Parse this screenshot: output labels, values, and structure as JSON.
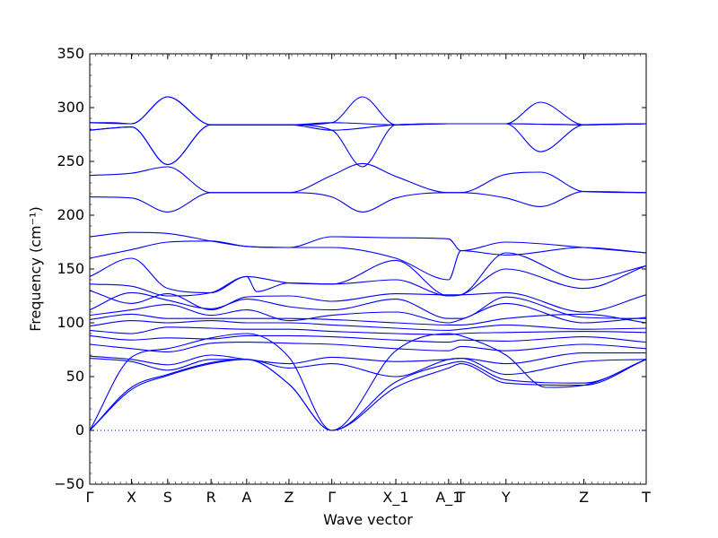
{
  "chart_data": {
    "type": "line",
    "xlabel": "Wave vector",
    "ylabel": "Frequency (cm⁻¹)",
    "ylim": [
      -50,
      350
    ],
    "yticks": [
      -50,
      0,
      50,
      100,
      150,
      200,
      250,
      300,
      350
    ],
    "xlim": [
      0,
      100
    ],
    "high_symmetry_points": [
      {
        "label": "Γ",
        "x": 0
      },
      {
        "label": "X",
        "x": 7.5
      },
      {
        "label": "S",
        "x": 14
      },
      {
        "label": "R",
        "x": 21.8
      },
      {
        "label": "A",
        "x": 28.2
      },
      {
        "label": "Z",
        "x": 35.8
      },
      {
        "label": "Γ",
        "x": 43.5
      },
      {
        "label": "X_1",
        "x": 55
      },
      {
        "label": "A_1",
        "x": 64.5
      },
      {
        "label": "T",
        "x": 66.7
      },
      {
        "label": "Y",
        "x": 74.8
      },
      {
        "label": "Z",
        "x": 88.8
      },
      {
        "label": "T",
        "x": 100
      }
    ],
    "zero_line": true,
    "series": [
      {
        "x": [
          0,
          7.5,
          14,
          21.8,
          28.2,
          35.8,
          43.5,
          55,
          64.5,
          66.7,
          74.8,
          88.8,
          100
        ],
        "y": [
          286,
          285,
          310,
          284,
          284,
          284,
          286,
          284,
          285,
          285,
          285,
          284,
          285
        ]
      },
      {
        "x": [
          0,
          7.5,
          14,
          21.8,
          28.2,
          35.8,
          43.5,
          55,
          64.5,
          66.7,
          74.8,
          88.8,
          100
        ],
        "y": [
          279,
          282,
          247,
          284,
          284,
          284,
          279,
          284,
          285,
          285,
          285,
          284,
          285
        ]
      },
      {
        "x": [
          0,
          4,
          7.5,
          14,
          21.8,
          28.2,
          35.8,
          43.5,
          49,
          55,
          64.5,
          66.7,
          74.8,
          81,
          88.8,
          100
        ],
        "y": [
          286,
          286,
          285,
          310,
          284,
          284,
          284,
          286,
          310,
          284,
          285,
          285,
          285,
          305,
          284,
          285
        ]
      },
      {
        "x": [
          0,
          7.5,
          14,
          21.8,
          28.2,
          35.8,
          43.5,
          49,
          55,
          64.5,
          66.7,
          74.8,
          81,
          88.8,
          100
        ],
        "y": [
          279,
          282,
          247,
          284,
          284,
          284,
          279,
          245,
          284,
          285,
          285,
          285,
          259,
          284,
          285
        ]
      },
      {
        "x": [
          0,
          7.5,
          14,
          21.8,
          28.2,
          35.8,
          43.5,
          49,
          55,
          64.5,
          66.7,
          74.8,
          81,
          88.8,
          100
        ],
        "y": [
          237,
          239,
          245,
          221,
          221,
          221,
          237,
          248,
          236,
          221,
          221,
          238,
          240,
          222,
          221
        ]
      },
      {
        "x": [
          0,
          7.5,
          14,
          21.8,
          28.2,
          35.8,
          43.5,
          49,
          55,
          64.5,
          66.7,
          74.8,
          81,
          88.8,
          100
        ],
        "y": [
          217,
          216,
          203,
          221,
          221,
          221,
          217,
          203,
          216,
          221,
          221,
          216,
          208,
          222,
          221
        ]
      },
      {
        "x": [
          0,
          7.5,
          14,
          21.8,
          28.2,
          35.8,
          43.5,
          55,
          64.5,
          66.7,
          74.8,
          88.8,
          100
        ],
        "y": [
          180,
          184,
          183,
          176,
          171,
          170,
          180,
          179,
          178,
          167,
          175,
          170,
          165
        ]
      },
      {
        "x": [
          0,
          7.5,
          14,
          21.8,
          28.2,
          35.8,
          43.5,
          55,
          64.5,
          66.7,
          74.8,
          88.8,
          100
        ],
        "y": [
          160,
          168,
          175,
          176,
          171,
          170,
          170,
          160,
          140,
          167,
          163,
          170,
          165
        ]
      },
      {
        "x": [
          0,
          7.5,
          14,
          21.8,
          28.2,
          35.8,
          43.5,
          55,
          64.5,
          66.7,
          74.8,
          88.8,
          100
        ],
        "y": [
          143,
          160,
          132,
          128,
          143,
          137,
          136,
          140,
          125,
          126,
          165,
          140,
          153
        ]
      },
      {
        "x": [
          0,
          7.5,
          14,
          21.8,
          28.2,
          30,
          35.8,
          43.5,
          55,
          64.5,
          66.7,
          74.8,
          88.8,
          100
        ],
        "y": [
          136,
          134,
          125,
          128,
          143,
          129,
          137,
          136,
          158,
          125,
          126,
          150,
          132,
          153
        ]
      },
      {
        "x": [
          0,
          7.5,
          14,
          21.8,
          28.2,
          35.8,
          43.5,
          55,
          64.5,
          66.7,
          74.8,
          88.8,
          100
        ],
        "y": [
          130,
          118,
          127,
          112,
          124,
          125,
          120,
          127,
          126,
          126,
          128,
          110,
          126
        ]
      },
      {
        "x": [
          0,
          7.5,
          14,
          21.8,
          28.2,
          35.8,
          43.5,
          55,
          64.5,
          66.7,
          74.8,
          88.8,
          100
        ],
        "y": [
          112,
          128,
          121,
          113,
          122,
          115,
          112,
          122,
          104,
          104,
          124,
          105,
          104
        ]
      },
      {
        "x": [
          0,
          7.5,
          14,
          21.8,
          28.2,
          35.8,
          43.5,
          55,
          64.5,
          66.7,
          74.8,
          88.8,
          100
        ],
        "y": [
          107,
          112,
          117,
          107,
          112,
          102,
          107,
          110,
          100,
          103,
          118,
          100,
          105
        ]
      },
      {
        "x": [
          0,
          7.5,
          14,
          21.8,
          28.2,
          35.8,
          43.5,
          55,
          64.5,
          66.7,
          74.8,
          88.8,
          100
        ],
        "y": [
          103,
          108,
          104,
          104,
          104,
          104,
          103,
          100,
          98,
          98,
          104,
          108,
          100
        ]
      },
      {
        "x": [
          0,
          7.5,
          14,
          21.8,
          28.2,
          35.8,
          43.5,
          55,
          64.5,
          66.7,
          74.8,
          88.8,
          100
        ],
        "y": [
          97,
          102,
          100,
          102,
          100,
          100,
          98,
          95,
          93,
          94,
          98,
          94,
          95
        ]
      },
      {
        "x": [
          0,
          7.5,
          14,
          21.8,
          28.2,
          35.8,
          43.5,
          55,
          64.5,
          66.7,
          74.8,
          88.8,
          100
        ],
        "y": [
          93,
          90,
          96,
          95,
          94,
          94,
          92,
          90,
          89,
          90,
          91,
          92,
          91
        ]
      },
      {
        "x": [
          0,
          7.5,
          14,
          21.8,
          28.2,
          35.8,
          43.5,
          55,
          64.5,
          66.7,
          74.8,
          88.8,
          100
        ],
        "y": [
          88,
          84,
          86,
          85,
          88,
          88,
          87,
          84,
          82,
          84,
          83,
          87,
          82
        ]
      },
      {
        "x": [
          0,
          7.5,
          14,
          21.8,
          28.2,
          35.8,
          43.5,
          55,
          64.5,
          66.7,
          74.8,
          88.8,
          100
        ],
        "y": [
          80,
          76,
          73,
          81,
          82,
          81,
          80,
          76,
          74,
          78,
          74,
          80,
          76
        ]
      },
      {
        "x": [
          0,
          7.5,
          14,
          21.8,
          28.2,
          35.8,
          43.5,
          55,
          64.5,
          66.7,
          74.8,
          88.8,
          100
        ],
        "y": [
          69,
          66,
          61,
          70,
          66,
          62,
          68,
          64,
          66,
          67,
          62,
          72,
          72
        ]
      },
      {
        "x": [
          0,
          7.5,
          14,
          21.8,
          28.2,
          35.8,
          43.5,
          55,
          64.5,
          66.7,
          74.8,
          88.8,
          100
        ],
        "y": [
          67,
          64,
          56,
          66,
          66,
          58,
          62,
          50,
          66,
          67,
          52,
          64,
          66
        ]
      },
      {
        "x": [
          0,
          7.5,
          14,
          21.8,
          28.2,
          35.8,
          43.5,
          55,
          64.5,
          66.7,
          74.8,
          88.8,
          100
        ],
        "y": [
          0,
          40,
          52,
          63,
          66,
          43,
          0,
          45,
          62,
          64,
          47,
          44,
          66
        ]
      },
      {
        "x": [
          0,
          7.5,
          14,
          21.8,
          28.2,
          35.8,
          43.5,
          55,
          64.5,
          66.7,
          74.8,
          88.8,
          100
        ],
        "y": [
          0,
          38,
          51,
          62,
          66,
          43,
          0,
          40,
          58,
          62,
          44,
          42,
          66
        ]
      },
      {
        "x": [
          0,
          7.5,
          14,
          21.8,
          28.2,
          35.8,
          43.5,
          55,
          64.5,
          66.7,
          74.8,
          82,
          88.8,
          100
        ],
        "y": [
          0,
          68,
          76,
          86,
          90,
          68,
          0,
          74,
          90,
          88,
          70,
          40,
          42,
          66
        ]
      }
    ]
  }
}
